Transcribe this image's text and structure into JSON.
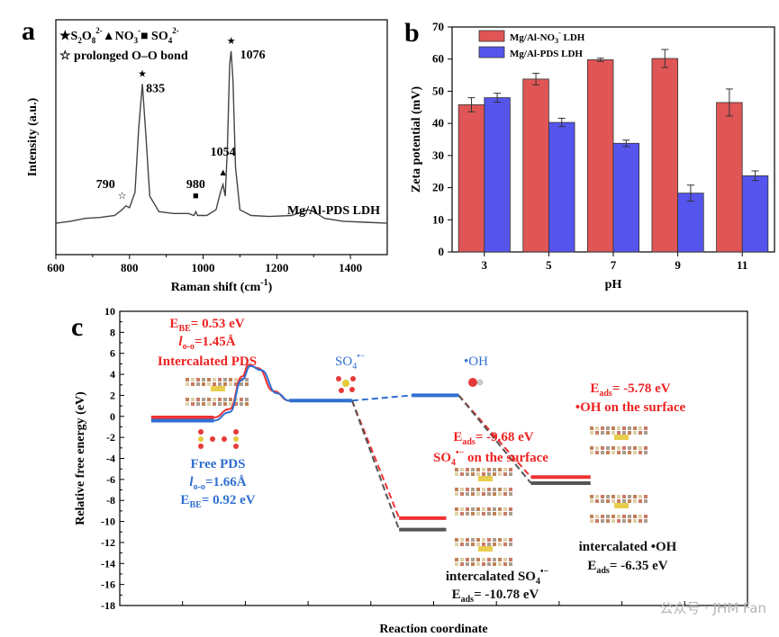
{
  "panels": {
    "a": {
      "letter": "a"
    },
    "b": {
      "letter": "b"
    },
    "c": {
      "letter": "c"
    }
  },
  "watermark": "公众号 · JHM Fan",
  "chart_data": [
    {
      "id": "a",
      "type": "line",
      "xlabel_main": "Raman shift (cm",
      "xlabel_sup": "-1",
      "xlabel_end": ")",
      "ylabel": "Intensity (a.u.)",
      "xlim": [
        600,
        1500
      ],
      "xticks": [
        600,
        800,
        1000,
        1200,
        1400
      ],
      "y_ticks_shown": false,
      "series": [
        {
          "name": "Mg/Al-PDS LDH",
          "points": [
            [
              600,
              0.06
            ],
            [
              640,
              0.07
            ],
            [
              680,
              0.085
            ],
            [
              720,
              0.09
            ],
            [
              760,
              0.1
            ],
            [
              780,
              0.13
            ],
            [
              790,
              0.15
            ],
            [
              800,
              0.14
            ],
            [
              815,
              0.22
            ],
            [
              825,
              0.55
            ],
            [
              835,
              0.78
            ],
            [
              845,
              0.5
            ],
            [
              855,
              0.2
            ],
            [
              880,
              0.12
            ],
            [
              920,
              0.11
            ],
            [
              960,
              0.11
            ],
            [
              975,
              0.1
            ],
            [
              980,
              0.12
            ],
            [
              985,
              0.1
            ],
            [
              1010,
              0.1
            ],
            [
              1035,
              0.13
            ],
            [
              1047,
              0.22
            ],
            [
              1054,
              0.26
            ],
            [
              1060,
              0.2
            ],
            [
              1066,
              0.45
            ],
            [
              1072,
              0.88
            ],
            [
              1076,
              0.95
            ],
            [
              1081,
              0.8
            ],
            [
              1088,
              0.35
            ],
            [
              1100,
              0.13
            ],
            [
              1130,
              0.1
            ],
            [
              1180,
              0.095
            ],
            [
              1240,
              0.1
            ],
            [
              1270,
              0.12
            ],
            [
              1285,
              0.13
            ],
            [
              1300,
              0.12
            ],
            [
              1330,
              0.085
            ],
            [
              1380,
              0.07
            ],
            [
              1440,
              0.065
            ],
            [
              1500,
              0.06
            ]
          ]
        }
      ],
      "peaks": [
        {
          "x": 790,
          "label": "790",
          "symbol": "☆"
        },
        {
          "x": 835,
          "label": "835",
          "symbol": "★"
        },
        {
          "x": 980,
          "label": "980",
          "symbol": "■"
        },
        {
          "x": 1054,
          "label": "1054",
          "symbol": "▲"
        },
        {
          "x": 1076,
          "label": "1076",
          "symbol": "★"
        }
      ],
      "legend": {
        "line1_parts": [
          "★S",
          "2",
          "O",
          "8",
          "2-",
          "▲NO",
          "3",
          "-",
          "■ SO",
          "4",
          "2-"
        ],
        "line2": "☆ prolonged O–O bond"
      },
      "series_label": "Mg/Al-PDS LDH"
    },
    {
      "id": "b",
      "type": "bar",
      "xlabel": "pH",
      "ylabel": "Zeta potential (mV)",
      "ylim": [
        0,
        70
      ],
      "yticks": [
        0,
        10,
        20,
        30,
        40,
        50,
        60,
        70
      ],
      "categories": [
        "3",
        "5",
        "7",
        "9",
        "11"
      ],
      "legend_position": "top-left",
      "series": [
        {
          "name": "Mg/Al-NO3- LDH",
          "legend_parts": [
            "Mg/Al-NO",
            "3",
            "-",
            " LDH"
          ],
          "color": "#e05555",
          "values": [
            45.8,
            53.8,
            59.8,
            60.2,
            46.5
          ],
          "errors": [
            2.2,
            1.8,
            0.5,
            2.8,
            4.2
          ]
        },
        {
          "name": "Mg/Al-PDS LDH",
          "legend_parts": [
            "Mg/Al-PDS LDH"
          ],
          "color": "#5555ee",
          "values": [
            48.0,
            40.3,
            33.8,
            18.3,
            23.7
          ],
          "errors": [
            1.4,
            1.3,
            1.0,
            2.5,
            1.5
          ]
        }
      ]
    },
    {
      "id": "c",
      "type": "line",
      "xlabel": "Reaction coordinate",
      "ylabel": "Relative free energy (eV)",
      "ylim": [
        -18,
        10
      ],
      "yticks": [
        -18,
        -16,
        -14,
        -12,
        -10,
        -8,
        -6,
        -4,
        -2,
        0,
        2,
        4,
        6,
        8,
        10
      ],
      "xlim": [
        0,
        10
      ],
      "xticks_unlabeled": [
        1,
        2,
        3,
        4,
        5,
        6,
        7,
        8,
        9
      ],
      "levels": [
        {
          "id": "pds-red",
          "x0": 0.5,
          "x1": 1.5,
          "y": -0.1,
          "color": "#ee3333"
        },
        {
          "id": "pds-blue",
          "x0": 0.5,
          "x1": 1.5,
          "y": -0.4,
          "color": "#2f6fd0"
        },
        {
          "id": "so4",
          "x0": 2.7,
          "x1": 3.7,
          "y": 1.5,
          "color": "#2f6fd0"
        },
        {
          "id": "oh",
          "x0": 4.65,
          "x1": 5.4,
          "y": 2.0,
          "color": "#2f6fd0"
        },
        {
          "id": "so4-red",
          "x0": 4.45,
          "x1": 5.2,
          "y": -9.68,
          "color": "#ee3333"
        },
        {
          "id": "so4-black",
          "x0": 4.45,
          "x1": 5.2,
          "y": -10.78,
          "color": "#555555"
        },
        {
          "id": "oh-red",
          "x0": 6.55,
          "x1": 7.5,
          "y": -5.78,
          "color": "#ee3333"
        },
        {
          "id": "oh-black",
          "x0": 6.55,
          "x1": 7.5,
          "y": -6.35,
          "color": "#555555"
        }
      ],
      "curves": [
        {
          "color": "#ee3333",
          "points": [
            [
              1.5,
              -0.1
            ],
            [
              1.75,
              0.7
            ],
            [
              1.95,
              3.8
            ],
            [
              2.05,
              4.9
            ],
            [
              2.2,
              4.6
            ],
            [
              2.45,
              2.4
            ],
            [
              2.7,
              1.5
            ]
          ]
        },
        {
          "color": "#2f6fd0",
          "points": [
            [
              1.5,
              -0.4
            ],
            [
              1.75,
              0.4
            ],
            [
              1.95,
              3.5
            ],
            [
              2.08,
              4.8
            ],
            [
              2.25,
              4.4
            ],
            [
              2.5,
              2.2
            ],
            [
              2.7,
              1.5
            ]
          ]
        }
      ],
      "connectors": [
        {
          "x0": 3.7,
          "y0": 1.5,
          "x1": 4.65,
          "y1": 2.0,
          "color": "#2f6fd0"
        },
        {
          "x0": 3.7,
          "y0": 1.5,
          "x1": 4.45,
          "y1": -9.68,
          "color": "#ee3333"
        },
        {
          "x0": 3.7,
          "y0": 1.5,
          "x1": 4.45,
          "y1": -10.78,
          "color": "#555555"
        },
        {
          "x0": 5.4,
          "y0": 2.0,
          "x1": 6.55,
          "y1": -5.78,
          "color": "#ee3333"
        },
        {
          "x0": 5.4,
          "y0": 2.0,
          "x1": 6.55,
          "y1": -6.35,
          "color": "#555555"
        }
      ],
      "annotations": {
        "ebe_red": {
          "main": "E",
          "sub": "BE",
          "rest": "= 0.53 eV",
          "color": "#ee2222"
        },
        "loo_red": {
          "main": "l",
          "sub": "o-o",
          "rest": "=1.45Å",
          "color": "#ee2222"
        },
        "intercalated_pds": {
          "text": "Intercalated PDS",
          "color": "#ee2222"
        },
        "free_pds": {
          "text": "Free PDS",
          "color": "#2f6fd0"
        },
        "loo_blue": {
          "main": "l",
          "sub": "o-o",
          "rest": "=1.66Å",
          "color": "#2f6fd0"
        },
        "ebe_blue": {
          "main": "E",
          "sub": "BE",
          "rest": "= 0.92 eV",
          "color": "#2f6fd0"
        },
        "so4_label": {
          "main": "SO",
          "sub": "4",
          "sup": "•−",
          "color": "#2f6fd0"
        },
        "oh_label": {
          "text": "•OH",
          "color": "#2f6fd0"
        },
        "eads_so4_red": {
          "main": "E",
          "sub": "ads",
          "rest": "= -9.68 eV",
          "color": "#ee2222"
        },
        "so4_surface": {
          "main": "SO",
          "sub": "4",
          "sup": "•−",
          "rest": " on the surface",
          "color": "#ee2222"
        },
        "eads_oh_red": {
          "main": "E",
          "sub": "ads",
          "rest": "= -5.78 eV",
          "color": "#ee2222"
        },
        "oh_surface": {
          "text": "•OH on the surface",
          "color": "#ee2222"
        },
        "intercalated_so4": {
          "main": "intercalated SO",
          "sub": "4",
          "sup": "•−",
          "color": "#111111"
        },
        "eads_so4_black": {
          "main": "E",
          "sub": "ads",
          "rest": "= -10.78 eV",
          "color": "#111111"
        },
        "intercalated_oh": {
          "text": "intercalated •OH",
          "color": "#111111"
        },
        "eads_oh_black": {
          "main": "E",
          "sub": "ads",
          "rest": "= -6.35 eV",
          "color": "#111111"
        }
      }
    }
  ]
}
